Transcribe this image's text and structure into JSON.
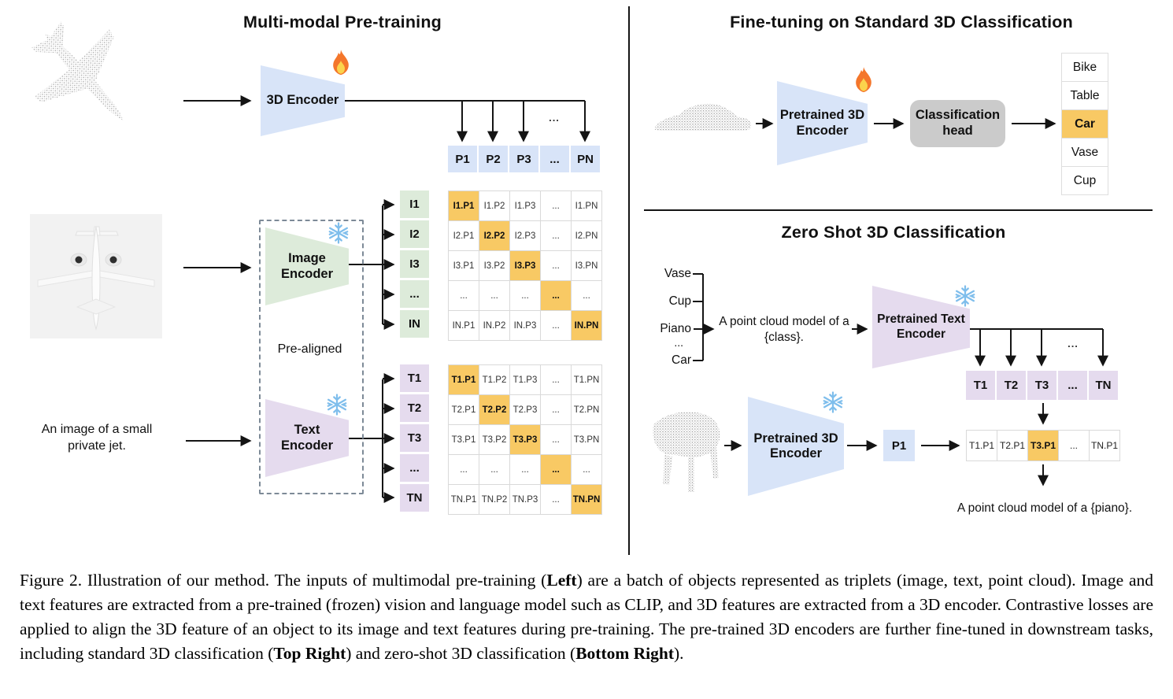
{
  "colors": {
    "blue": "#D8E4F8",
    "green": "#DDEBDA",
    "purple": "#E5DBEE",
    "highlight": "#F8C964",
    "head_gray": "#CBCBCB"
  },
  "icons": {
    "trainable": "fire-icon",
    "frozen": "snowflake-icon"
  },
  "pretraining": {
    "title": "Multi-modal Pre-training",
    "point_encoder_label": "3D Encoder",
    "image_encoder_label": "Image Encoder",
    "text_encoder_label": "Text Encoder",
    "pre_aligned_label": "Pre-aligned",
    "text_input": "An image of a small private jet.",
    "dots": "...",
    "p_row": [
      "P1",
      "P2",
      "P3",
      "...",
      "PN"
    ],
    "image_labels": [
      "I1",
      "I2",
      "I3",
      "...",
      "IN"
    ],
    "text_labels": [
      "T1",
      "T2",
      "T3",
      "...",
      "TN"
    ],
    "image_matrix": [
      [
        "I1.P1",
        "I1.P2",
        "I1.P3",
        "...",
        "I1.PN"
      ],
      [
        "I2.P1",
        "I2.P2",
        "I2.P3",
        "...",
        "I2.PN"
      ],
      [
        "I3.P1",
        "I3.P2",
        "I3.P3",
        "...",
        "I3.PN"
      ],
      [
        "...",
        "...",
        "...",
        "...",
        "..."
      ],
      [
        "IN.P1",
        "IN.P2",
        "IN.P3",
        "...",
        "IN.PN"
      ]
    ],
    "text_matrix": [
      [
        "T1.P1",
        "T1.P2",
        "T1.P3",
        "...",
        "T1.PN"
      ],
      [
        "T2.P1",
        "T2.P2",
        "T2.P3",
        "...",
        "T2.PN"
      ],
      [
        "T3.P1",
        "T3.P2",
        "T3.P3",
        "...",
        "T3.PN"
      ],
      [
        "...",
        "...",
        "...",
        "...",
        "..."
      ],
      [
        "TN.P1",
        "TN.P2",
        "TN.P3",
        "...",
        "TN.PN"
      ]
    ]
  },
  "finetune": {
    "title": "Fine-tuning on Standard 3D Classification",
    "encoder_label": "Pretrained 3D Encoder",
    "head_label": "Classification head",
    "classes": [
      "Bike",
      "Table",
      "Car",
      "Vase",
      "Cup"
    ],
    "predicted_class": "Car"
  },
  "zeroshot": {
    "title": "Zero Shot 3D Classification",
    "candidate_classes": [
      "Vase",
      "Cup",
      "Piano",
      "...",
      "Car"
    ],
    "prompt": "A point cloud model of a {class}.",
    "text_encoder_label": "Pretrained Text Encoder",
    "point_encoder_label": "Pretrained 3D Encoder",
    "p_feature": "P1",
    "t_row": [
      "T1",
      "T2",
      "T3",
      "...",
      "TN"
    ],
    "similarity_row": [
      "T1.P1",
      "T2.P1",
      "T3.P1",
      "...",
      "TN.P1"
    ],
    "predicted_prompt": "A point cloud model of a {piano}.",
    "dots": "..."
  },
  "caption": {
    "segments": [
      {
        "text": "Figure 2. Illustration of our method.  The inputs of multimodal pre-training (",
        "bold": false
      },
      {
        "text": "Left",
        "bold": true
      },
      {
        "text": ") are a batch of objects represented as triplets (image, text, point cloud).  Image and text features are extracted from a pre-trained (frozen) vision and language model such as CLIP, and 3D features are extracted from a 3D encoder.  Contrastive losses are applied to align the 3D feature of an object to its image and text features during pre-training.  The pre-trained 3D encoders are further fine-tuned in downstream tasks, including standard 3D classification (",
        "bold": false
      },
      {
        "text": "Top Right",
        "bold": true
      },
      {
        "text": ") and zero-shot 3D classification (",
        "bold": false
      },
      {
        "text": "Bottom Right",
        "bold": true
      },
      {
        "text": ").",
        "bold": false
      }
    ]
  }
}
